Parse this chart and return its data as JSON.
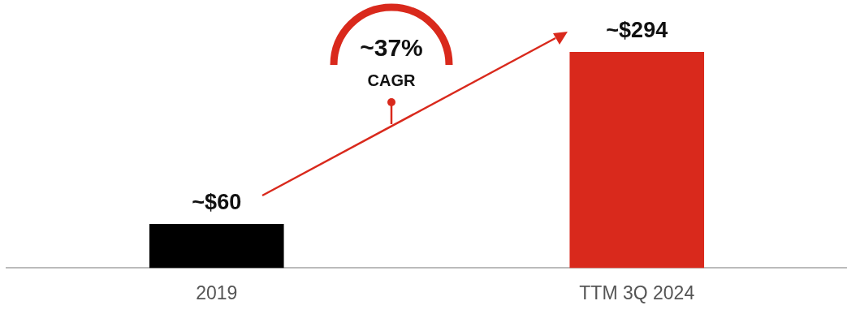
{
  "chart_data": {
    "type": "bar",
    "categories": [
      "2019",
      "TTM 3Q 2024"
    ],
    "values": [
      60,
      294
    ],
    "colors": [
      "#000000",
      "#d9291c"
    ],
    "value_labels": [
      "~$60",
      "~$294"
    ],
    "annotations": [
      "~37%",
      "CAGR"
    ]
  }
}
